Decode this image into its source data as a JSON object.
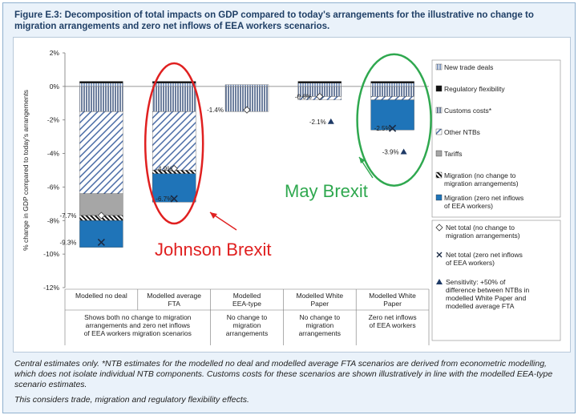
{
  "figure": {
    "title": "Figure E.3: Decomposition of total impacts on GDP compared to today's arrangements for the illustrative no change to migration arrangements and zero net inflows of EEA workers scenarios.",
    "notes": [
      "Central estimates only. *NTB estimates for the modelled no deal and modelled average FTA scenarios are derived from econometric modelling, which does not isolate individual NTB components. Customs costs for these scenarios are shown illustratively in line with the modelled EEA-type scenario estimates.",
      "This considers trade, migration and regulatory flexibility effects."
    ]
  },
  "annotations": {
    "johnson": "Johnson Brexit",
    "may": "May Brexit"
  },
  "colors": {
    "frame_border": "#8fb0cf",
    "title": "#1f3f66",
    "migration_zero": "#1f74b8",
    "tariffs": "#a6a6a6",
    "other_ntbs": "#3a5f9e",
    "customs": "#7a8fb0",
    "johnson_annotation": "#e02020",
    "may_annotation": "#2fa84f"
  },
  "chart_data": {
    "type": "bar",
    "stacked": true,
    "ylabel": "% change in GDP compared to today's arrangements",
    "ylim": [
      -12,
      2
    ],
    "yticks": [
      2,
      0,
      -2,
      -4,
      -6,
      -8,
      -10,
      -12
    ],
    "ytick_labels": [
      "2%",
      "0%",
      "-2%",
      "-4%",
      "-6%",
      "-8%",
      "-10%",
      "-12%"
    ],
    "categories": [
      "Modelled no deal",
      "Modelled average FTA",
      "Modelled EEA-type",
      "Modelled White Paper",
      "Modelled White Paper"
    ],
    "subtitles": [
      "Shows both no change to migration arrangements and zero net inflows of EEA workers migration scenarios",
      "",
      "No change to migration arrangements",
      "No change to migration arrangements",
      "Zero net inflows of EEA workers"
    ],
    "series": [
      {
        "name": "New trade deals",
        "key": "new_trade",
        "values": [
          0.2,
          0.2,
          0.1,
          0.2,
          0.2
        ]
      },
      {
        "name": "Regulatory flexibility",
        "key": "reg_flex",
        "values": [
          0.1,
          0.1,
          0.0,
          0.1,
          0.1
        ]
      },
      {
        "name": "Customs costs*",
        "key": "customs",
        "values": [
          -1.5,
          -1.5,
          -1.5,
          -0.6,
          -0.6
        ]
      },
      {
        "name": "Other NTBs",
        "key": "other_ntbs",
        "values": [
          -4.9,
          -3.5,
          0.0,
          -0.2,
          -0.2
        ]
      },
      {
        "name": "Tariffs",
        "key": "tariffs",
        "values": [
          -1.3,
          0.0,
          0.0,
          0.0,
          0.0
        ]
      },
      {
        "name": "Migration (no change to migration arrangements)",
        "key": "migration_no_change",
        "values": [
          -0.3,
          -0.2,
          0.0,
          0.0,
          0.0
        ]
      },
      {
        "name": "Migration (zero net inflows of EEA workers)",
        "key": "migration_zero",
        "values": [
          -1.6,
          -1.7,
          0.0,
          0.0,
          -1.8
        ]
      }
    ],
    "net_total_no_change": [
      {
        "index": 0,
        "value": -7.7,
        "label": "-7.7%"
      },
      {
        "index": 1,
        "value": -4.9,
        "label": "-4.9%"
      },
      {
        "index": 2,
        "value": -1.4,
        "label": "-1.4%"
      },
      {
        "index": 3,
        "value": -0.6,
        "label": "-0.6%"
      }
    ],
    "net_total_zero": [
      {
        "index": 0,
        "value": -9.3,
        "label": "-9.3%"
      },
      {
        "index": 1,
        "value": -6.7,
        "label": "-6.7%"
      },
      {
        "index": 4,
        "value": -2.5,
        "label": "-2.5%"
      }
    ],
    "sensitivity": [
      {
        "index": 3,
        "value": -2.1,
        "label": "-2.1%"
      },
      {
        "index": 4,
        "value": -3.9,
        "label": "-3.9%"
      }
    ],
    "legend": [
      {
        "name": "New trade deals",
        "swatch": "new_trade"
      },
      {
        "name": "Regulatory flexibility",
        "swatch": "reg_flex"
      },
      {
        "name": "Customs costs*",
        "swatch": "customs"
      },
      {
        "name": "Other NTBs",
        "swatch": "other_ntbs"
      },
      {
        "name": "Tariffs",
        "swatch": "tariffs"
      },
      {
        "name": "Migration (no change to migration arrangements)",
        "swatch": "migration_no_change"
      },
      {
        "name": "Migration (zero net inflows of EEA workers)",
        "swatch": "migration_zero"
      }
    ],
    "legend_markers": [
      {
        "name": "Net total (no change to migration arrangements)",
        "marker": "diamond"
      },
      {
        "name": "Net total (zero net inflows of EEA workers)",
        "marker": "cross"
      },
      {
        "name": "Sensitivity: +50% of difference between NTBs in modelled White Paper and modelled average FTA",
        "marker": "triangle"
      }
    ]
  }
}
